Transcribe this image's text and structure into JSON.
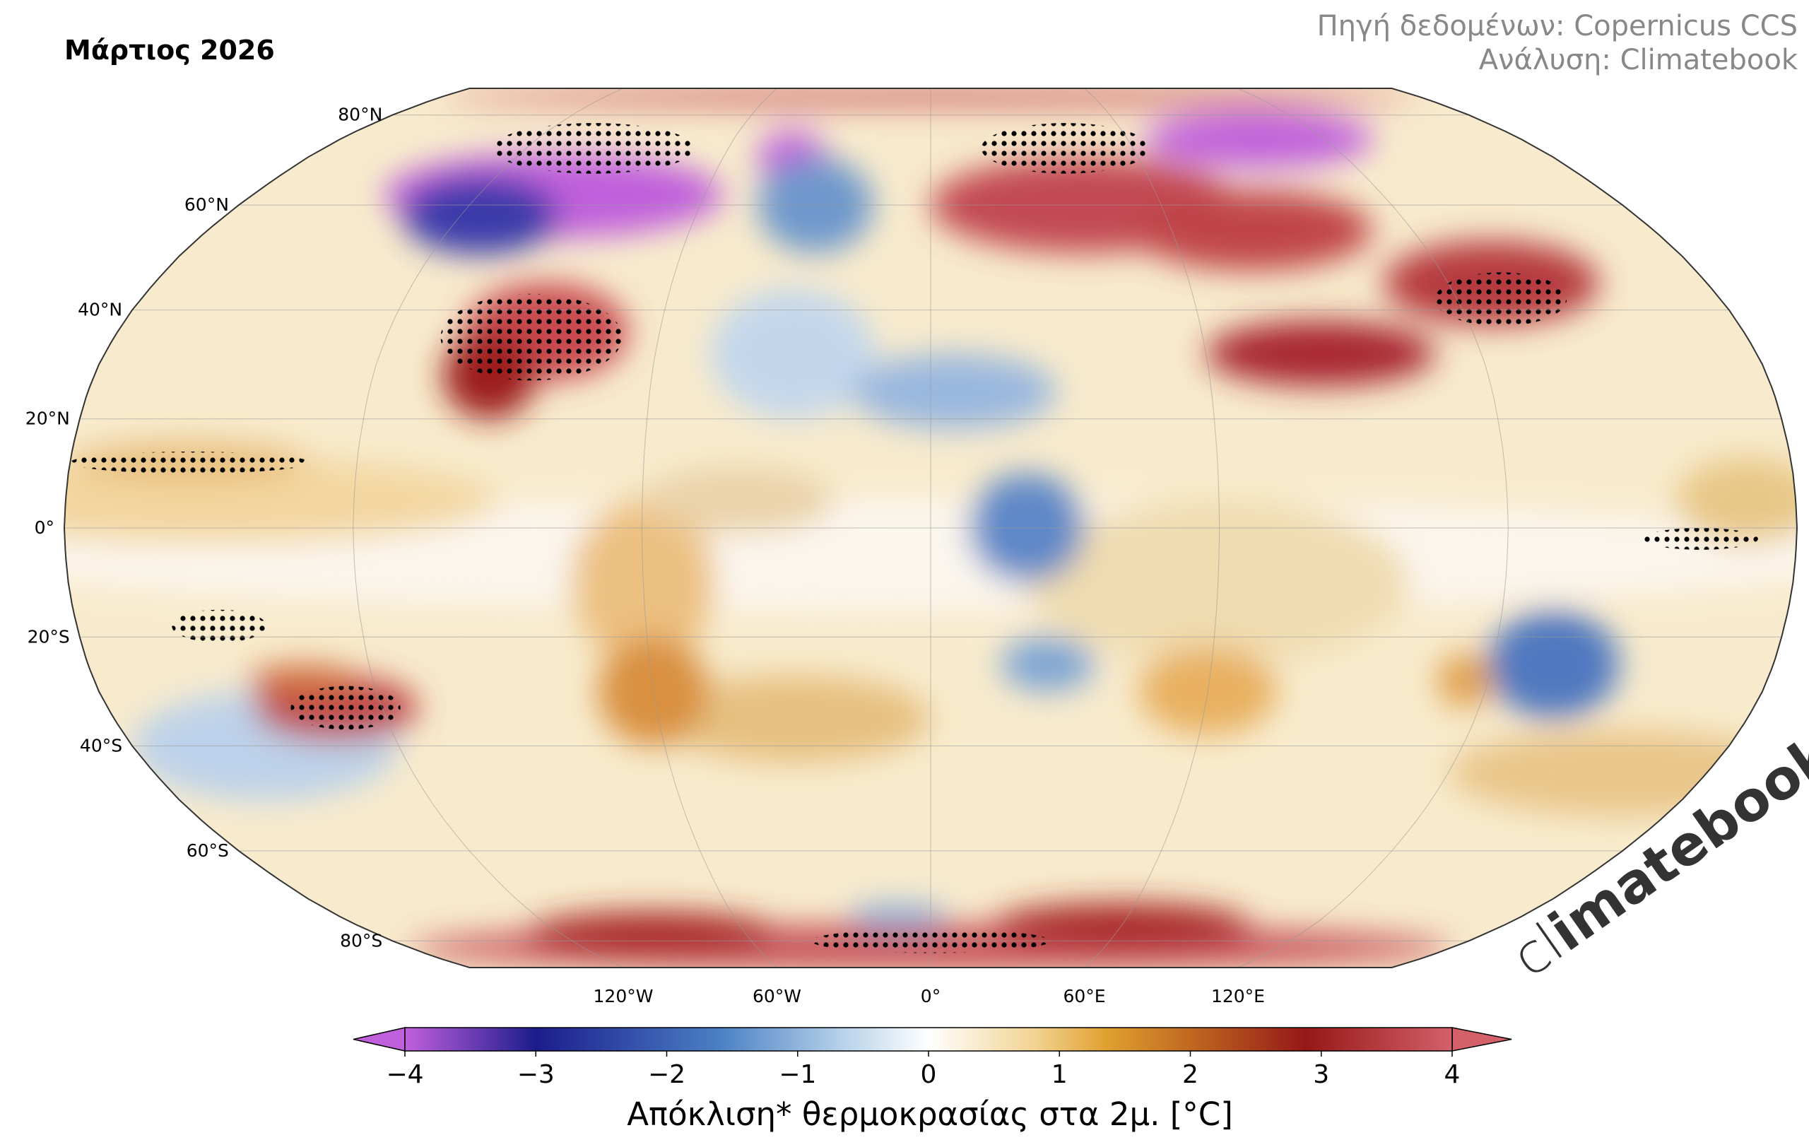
{
  "header": {
    "title": "Μάρτιος 2026",
    "source_lines": [
      "Πηγή δεδομένων: Copernicus CCS",
      "Ανάλυση: Climatebook"
    ]
  },
  "map": {
    "lat_labels": [
      "80°N",
      "60°N",
      "40°N",
      "20°N",
      "0°",
      "20°S",
      "40°S",
      "60°S",
      "80°S"
    ],
    "lon_labels": [
      "120°W",
      "60°W",
      "0°",
      "60°E",
      "120°E"
    ]
  },
  "colorbar": {
    "lim": [
      -4,
      4
    ],
    "ticks": [
      {
        "value": -4,
        "label": "−4"
      },
      {
        "value": -3,
        "label": "−3"
      },
      {
        "value": -2,
        "label": "−2"
      },
      {
        "value": -1,
        "label": "−1"
      },
      0,
      1,
      2,
      3,
      4
    ],
    "label": "Απόκλιση* θερμοκρασίας στα 2μ. [°C]"
  },
  "logo": {
    "parts": [
      "cl",
      "imatebook"
    ]
  }
}
